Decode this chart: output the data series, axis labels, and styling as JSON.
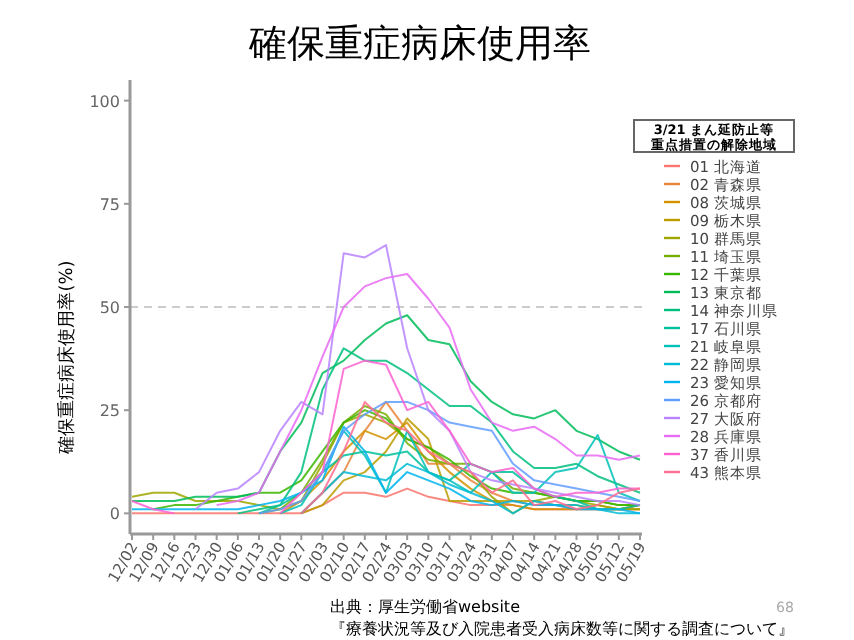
{
  "chart_data": {
    "type": "line",
    "title": "確保重症病床使用率",
    "ylabel": "確保重症病床使用率(%)",
    "legend_title": "3/21 まん延防止等重点措置の解除地域",
    "legend": "right",
    "grid": false,
    "ylim": [
      -5,
      105
    ],
    "yticks": [
      0,
      25,
      50,
      75,
      100
    ],
    "categories": [
      "12/02",
      "12/09",
      "12/16",
      "12/23",
      "12/30",
      "01/06",
      "01/13",
      "01/20",
      "01/27",
      "02/03",
      "02/10",
      "02/17",
      "02/24",
      "03/03",
      "03/10",
      "03/17",
      "03/24",
      "03/31",
      "04/07",
      "04/14",
      "04/21",
      "04/28",
      "05/05",
      "05/12",
      "05/19"
    ],
    "ref_lines": [
      {
        "axis": "y",
        "value": 50,
        "color": "#cccccc",
        "line_style": "dashed"
      }
    ],
    "annotations": [
      "出典：厚生労働省website",
      "『療養状況等及び入院患者受入病床数等に関する調査について』",
      "68"
    ],
    "series": [
      {
        "name": "01 北海道",
        "color": "#f8766d",
        "values": [
          0,
          0,
          0,
          0,
          0,
          0,
          0,
          0,
          0,
          2,
          5,
          5,
          4,
          6,
          4,
          3,
          2,
          2,
          2,
          1,
          1,
          1,
          1,
          1,
          1
        ]
      },
      {
        "name": "02 青森県",
        "color": "#e8853a",
        "values": [
          null,
          null,
          null,
          null,
          null,
          null,
          null,
          null,
          0,
          5,
          10,
          20,
          27,
          20,
          12,
          12,
          8,
          5,
          3,
          2,
          2,
          1,
          1,
          1,
          2
        ]
      },
      {
        "name": "08 茨城県",
        "color": "#d49200",
        "values": [
          null,
          null,
          null,
          null,
          null,
          null,
          null,
          0,
          3,
          8,
          15,
          20,
          18,
          22,
          15,
          10,
          6,
          3,
          2,
          1,
          1,
          1,
          2,
          1,
          1
        ]
      },
      {
        "name": "09 栃木県",
        "color": "#bb9d00",
        "values": [
          null,
          null,
          null,
          null,
          null,
          null,
          null,
          null,
          0,
          2,
          8,
          10,
          15,
          23,
          18,
          3,
          3,
          3,
          3,
          3,
          2,
          2,
          1,
          1,
          2
        ]
      },
      {
        "name": "10 群馬県",
        "color": "#9da700",
        "values": [
          4,
          5,
          5,
          3,
          3,
          3,
          2,
          1,
          3,
          12,
          22,
          24,
          22,
          18,
          16,
          12,
          10,
          4,
          0,
          3,
          4,
          3,
          2,
          1,
          1
        ]
      },
      {
        "name": "11 埼玉県",
        "color": "#76af00",
        "values": [
          null,
          null,
          null,
          null,
          null,
          null,
          0,
          1,
          5,
          13,
          22,
          26,
          24,
          17,
          13,
          12,
          12,
          10,
          6,
          5,
          4,
          3,
          3,
          2,
          2
        ]
      },
      {
        "name": "12 千葉県",
        "color": "#39b600",
        "values": [
          null,
          1,
          2,
          2,
          3,
          4,
          5,
          5,
          8,
          15,
          22,
          25,
          23,
          18,
          16,
          13,
          9,
          6,
          5,
          5,
          4,
          3,
          3,
          2,
          2
        ]
      },
      {
        "name": "13 東京都",
        "color": "#00bc59",
        "values": [
          3,
          3,
          3,
          4,
          4,
          4,
          5,
          15,
          22,
          34,
          37,
          42,
          46,
          48,
          42,
          41,
          32,
          27,
          24,
          23,
          25,
          20,
          18,
          15,
          13
        ]
      },
      {
        "name": "14 神奈川県",
        "color": "#00bf7d",
        "values": [
          null,
          null,
          null,
          null,
          null,
          0,
          1,
          2,
          10,
          30,
          40,
          37,
          37,
          34,
          30,
          26,
          26,
          22,
          15,
          11,
          11,
          12,
          9,
          7,
          5
        ]
      },
      {
        "name": "17 石川県",
        "color": "#00c19c",
        "values": [
          null,
          null,
          null,
          null,
          null,
          null,
          0,
          2,
          5,
          10,
          14,
          15,
          14,
          15,
          10,
          8,
          12,
          10,
          10,
          6,
          4,
          3,
          1,
          1,
          2
        ]
      },
      {
        "name": "21 岐阜県",
        "color": "#00c1b9",
        "values": [
          null,
          null,
          null,
          null,
          null,
          null,
          null,
          0,
          2,
          10,
          20,
          14,
          5,
          20,
          10,
          8,
          5,
          10,
          5,
          5,
          10,
          11,
          19,
          5,
          3
        ]
      },
      {
        "name": "22 静岡県",
        "color": "#00bcd6",
        "values": [
          null,
          null,
          null,
          null,
          null,
          null,
          null,
          null,
          0,
          5,
          10,
          9,
          8,
          12,
          10,
          7,
          5,
          3,
          0,
          3,
          2,
          2,
          1,
          0,
          0
        ]
      },
      {
        "name": "23 愛知県",
        "color": "#00b4ef",
        "values": [
          1,
          1,
          1,
          1,
          1,
          1,
          2,
          3,
          5,
          8,
          21,
          15,
          5,
          10,
          8,
          6,
          3,
          2,
          3,
          2,
          2,
          1,
          1,
          1,
          0
        ]
      },
      {
        "name": "26 京都府",
        "color": "#619cff",
        "values": [
          null,
          null,
          null,
          null,
          null,
          null,
          0,
          1,
          3,
          10,
          20,
          24,
          27,
          27,
          25,
          22,
          21,
          20,
          12,
          8,
          7,
          6,
          5,
          4,
          3
        ]
      },
      {
        "name": "27 大阪府",
        "color": "#b983ff",
        "values": [
          null,
          null,
          null,
          1,
          5,
          6,
          10,
          20,
          27,
          24,
          63,
          62,
          65,
          40,
          25,
          20,
          10,
          8,
          7,
          6,
          5,
          4,
          3,
          3,
          2
        ]
      },
      {
        "name": "28 兵庫県",
        "color": "#e76bf3",
        "values": [
          null,
          null,
          null,
          null,
          2,
          3,
          5,
          15,
          25,
          38,
          50,
          55,
          57,
          58,
          52,
          45,
          30,
          22,
          20,
          21,
          18,
          14,
          14,
          13,
          14
        ]
      },
      {
        "name": "37 香川県",
        "color": "#fd61d1",
        "values": [
          3,
          1,
          0,
          null,
          null,
          null,
          null,
          0,
          5,
          10,
          35,
          37,
          36,
          25,
          27,
          20,
          12,
          10,
          11,
          6,
          4,
          5,
          5,
          6,
          6
        ]
      },
      {
        "name": "43 熊本県",
        "color": "#ff6c91",
        "values": [
          null,
          null,
          null,
          null,
          null,
          null,
          null,
          null,
          0,
          5,
          15,
          27,
          22,
          20,
          15,
          12,
          10,
          5,
          8,
          2,
          3,
          1,
          2,
          5,
          6
        ]
      }
    ]
  }
}
